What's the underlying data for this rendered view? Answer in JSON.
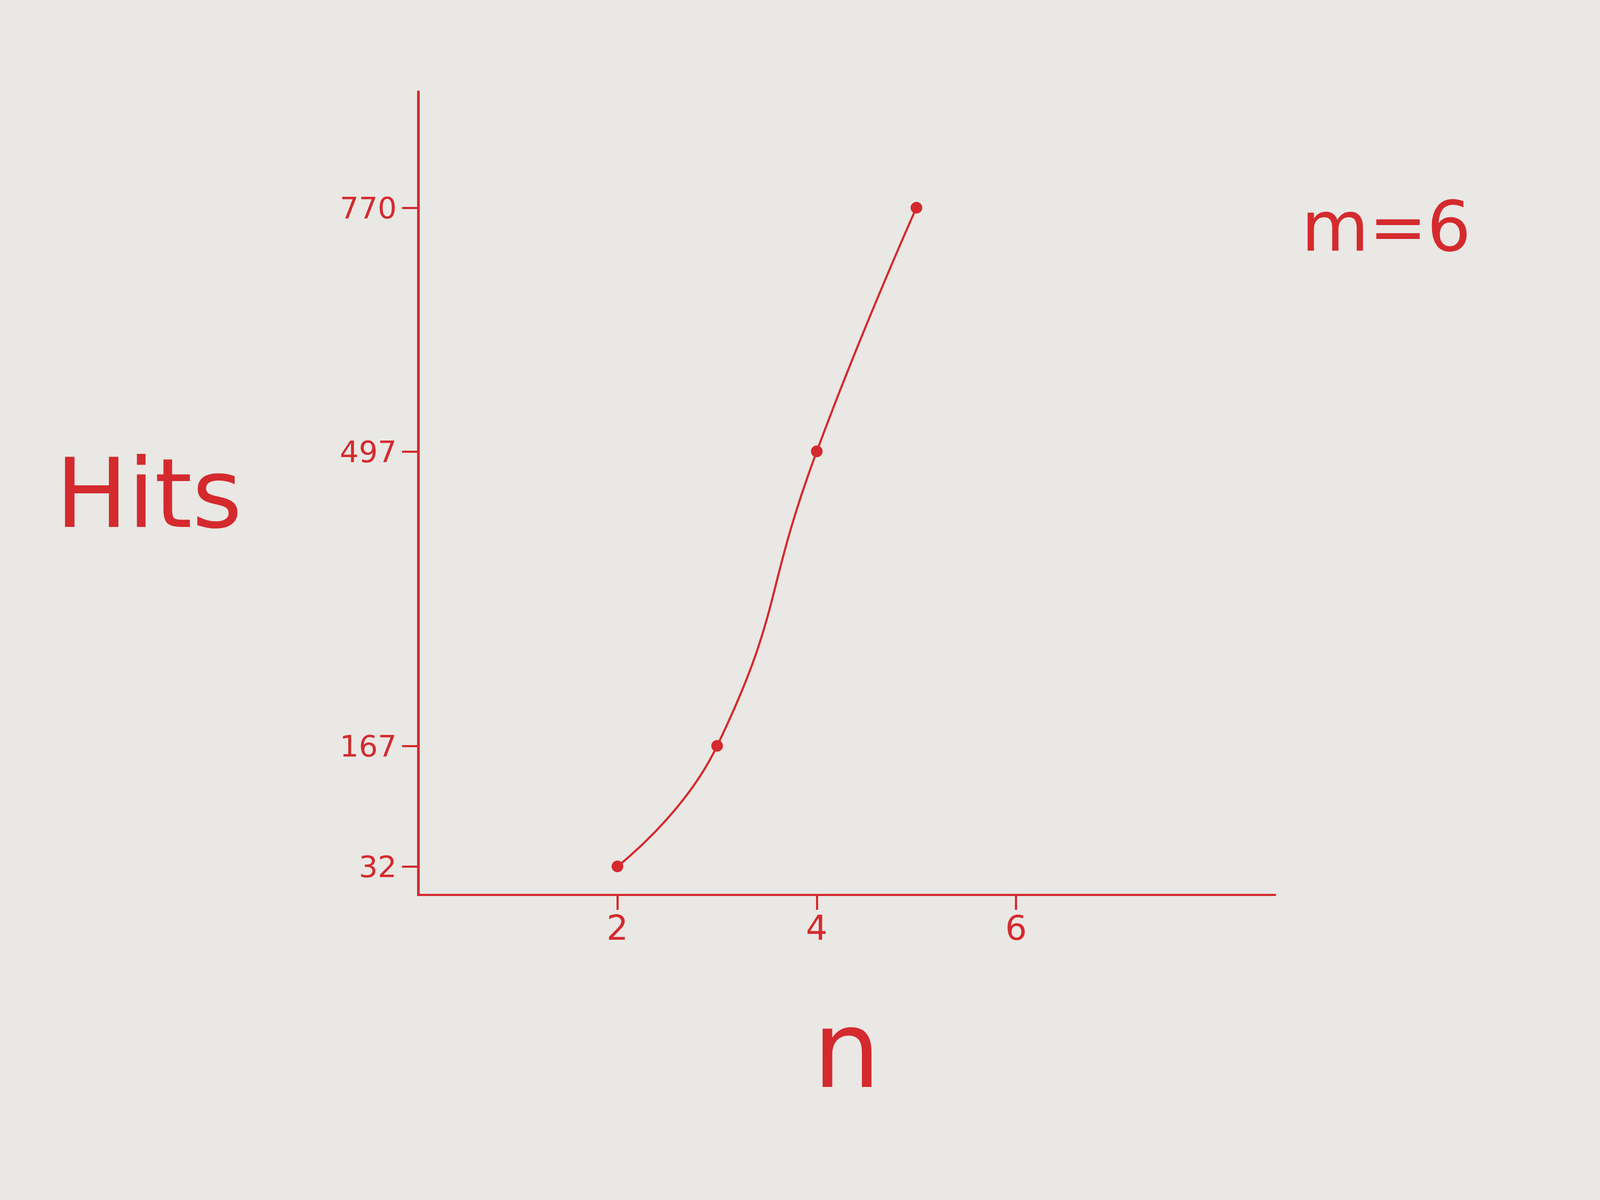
{
  "chart_data": {
    "type": "line",
    "x_label": "n",
    "y_label": "Hits",
    "annotation": "m=6",
    "x": [
      2,
      3,
      4,
      5
    ],
    "values": [
      32,
      167,
      497,
      770
    ],
    "color": "#d42a2e",
    "xlim": [
      0,
      8.6
    ],
    "xticks": [
      2,
      4,
      6
    ],
    "ylim": [
      0,
      900
    ],
    "yticks": [
      32,
      167,
      497,
      770
    ],
    "grid": false,
    "marker": "circle",
    "line_style": "solid"
  }
}
